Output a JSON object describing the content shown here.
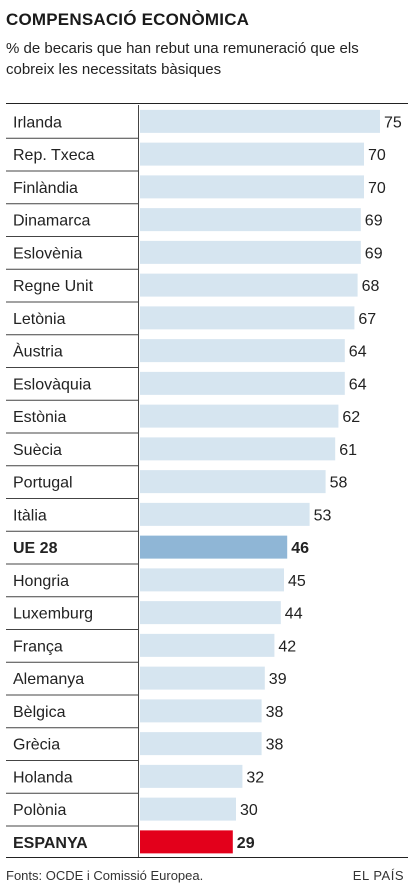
{
  "header": {
    "title": "COMPENSACIÓ ECONÒMICA",
    "subtitle": "% de becaris que han rebut una remuneració que els cobreix les necessitats bàsiques"
  },
  "footer": {
    "source": "Fonts: OCDE i Comissió Europea.",
    "brand": "EL PAÍS"
  },
  "colors": {
    "bar": "#d6e5f0",
    "highlight_eu": "#8fb6d6",
    "highlight_spain": "#e3001b",
    "divider": "#444444"
  },
  "chart_data": {
    "type": "bar",
    "orientation": "horizontal",
    "title": "COMPENSACIÓ ECONÒMICA",
    "subtitle": "% de becaris que han rebut una remuneració que els cobreix les necessitats bàsiques",
    "categories": [
      "Irlanda",
      "Rep. Txeca",
      "Finlàndia",
      "Dinamarca",
      "Eslovènia",
      "Regne Unit",
      "Letònia",
      "Àustria",
      "Eslovàquia",
      "Estònia",
      "Suècia",
      "Portugal",
      "Itàlia",
      "UE 28",
      "Hongria",
      "Luxemburg",
      "França",
      "Alemanya",
      "Bèlgica",
      "Grècia",
      "Holanda",
      "Polònia",
      "ESPANYA"
    ],
    "values": [
      75,
      70,
      70,
      69,
      69,
      68,
      67,
      64,
      64,
      62,
      61,
      58,
      53,
      46,
      45,
      44,
      42,
      39,
      38,
      38,
      32,
      30,
      29
    ],
    "highlight": {
      "UE 28": "eu",
      "ESPANYA": "spain"
    },
    "xlim": [
      0,
      75
    ],
    "grid": false,
    "legend": "none"
  }
}
